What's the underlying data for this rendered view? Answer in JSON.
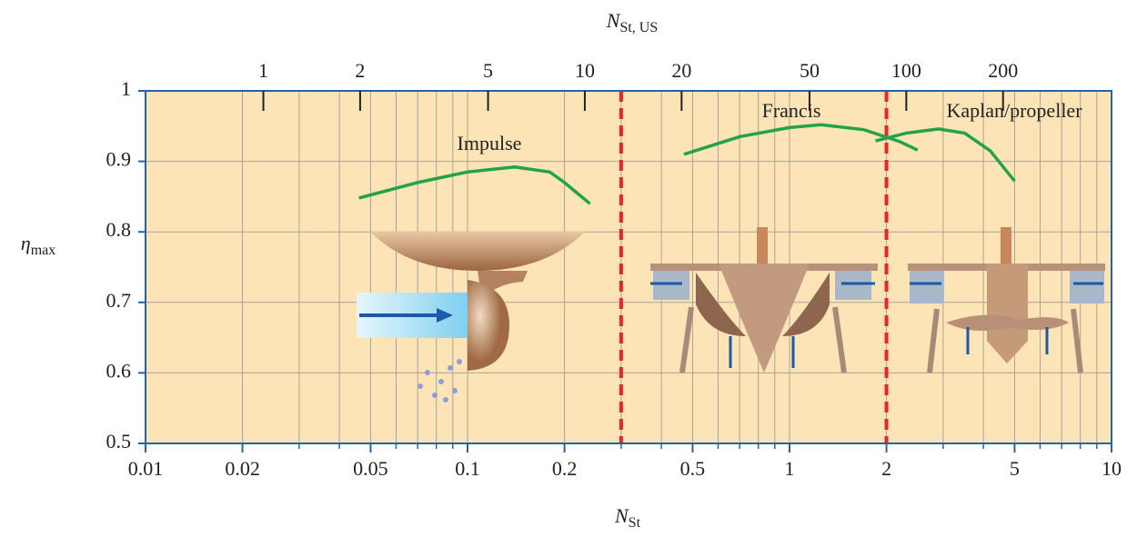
{
  "chart_data": {
    "type": "line",
    "x_label": {
      "symbol": "N",
      "subscript": "St"
    },
    "x2_label": {
      "symbol": "N",
      "subscript": "St, US"
    },
    "y_label": {
      "symbol": "η",
      "subscript": "max"
    },
    "log_x": true,
    "xlim": [
      0.01,
      10
    ],
    "xticks": [
      0.01,
      0.02,
      0.05,
      0.1,
      0.2,
      0.5,
      1,
      2,
      5,
      10
    ],
    "xminorticks": [
      0.03,
      0.04,
      0.06,
      0.07,
      0.08,
      0.09,
      0.3,
      0.4,
      0.6,
      0.7,
      0.8,
      0.9,
      3,
      4,
      6,
      7,
      8,
      9
    ],
    "x2lim": [
      0.43,
      435
    ],
    "x2ticks": [
      1,
      2,
      5,
      10,
      20,
      50,
      100,
      200
    ],
    "ylim": [
      0.5,
      1
    ],
    "yticks": [
      0.5,
      0.6,
      0.7,
      0.8,
      0.9,
      1
    ],
    "grid": true,
    "boundaries": {
      "color": "#e8262a",
      "x": [
        0.3,
        2
      ]
    },
    "series": [
      {
        "name": "Impulse",
        "color": "#22a34a",
        "x": [
          0.046,
          0.07,
          0.1,
          0.14,
          0.18,
          0.2,
          0.24
        ],
        "values": [
          0.848,
          0.87,
          0.885,
          0.892,
          0.885,
          0.87,
          0.84
        ]
      },
      {
        "name": "Francis",
        "color": "#22a34a",
        "x": [
          0.47,
          0.7,
          1,
          1.25,
          1.7,
          2.2,
          2.5
        ],
        "values": [
          0.91,
          0.935,
          0.948,
          0.952,
          0.945,
          0.928,
          0.916
        ]
      },
      {
        "name": "Kaplan/propeller",
        "color": "#22a34a",
        "x": [
          1.85,
          2.3,
          2.9,
          3.5,
          4.2,
          5
        ],
        "values": [
          0.929,
          0.94,
          0.946,
          0.94,
          0.915,
          0.872
        ]
      }
    ]
  }
}
